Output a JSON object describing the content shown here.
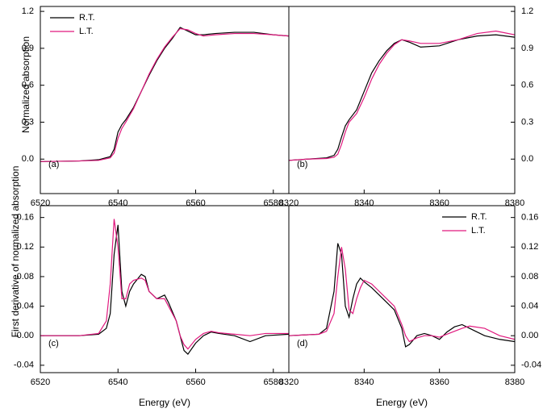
{
  "chart_data": [
    {
      "type": "line",
      "annotation": "(a)",
      "ylabel": "Normalized absorption",
      "y_axis_side": "left",
      "legend": "upper left",
      "xlim": [
        6520,
        6584
      ],
      "xticks": [
        6520,
        6540,
        6560,
        6580
      ],
      "ylim": [
        -0.28,
        1.24
      ],
      "yticks": [
        1.2,
        0.9,
        0.6,
        0.3,
        {
          "value": 0,
          "label": "0.0"
        }
      ],
      "x": [
        6520,
        6530,
        6535,
        6538,
        6539,
        6540,
        6541,
        6542,
        6544,
        6546,
        6548,
        6550,
        6552,
        6554,
        6556,
        6558,
        6560,
        6562,
        6565,
        6570,
        6575,
        6580,
        6584
      ],
      "series": [
        {
          "name": "R.T.",
          "color": "#000000",
          "values": [
            -0.02,
            -0.015,
            -0.005,
            0.02,
            0.08,
            0.22,
            0.28,
            0.32,
            0.42,
            0.55,
            0.68,
            0.8,
            0.9,
            0.98,
            1.07,
            1.04,
            1.01,
            1.01,
            1.02,
            1.03,
            1.03,
            1.01,
            1.0
          ]
        },
        {
          "name": "L.T.",
          "color": "#e0197e",
          "values": [
            -0.02,
            -0.015,
            -0.01,
            0.01,
            0.05,
            0.17,
            0.25,
            0.3,
            0.41,
            0.55,
            0.69,
            0.81,
            0.91,
            0.99,
            1.06,
            1.05,
            1.02,
            1.0,
            1.01,
            1.02,
            1.02,
            1.01,
            1.0
          ]
        }
      ]
    },
    {
      "type": "line",
      "annotation": "(b)",
      "y_axis_side": "right",
      "xlim": [
        8320,
        8380
      ],
      "xticks": [
        8320,
        8340,
        8360,
        8380
      ],
      "ylim": [
        -0.28,
        1.24
      ],
      "yticks": [
        1.2,
        0.9,
        0.6,
        0.3,
        {
          "value": 0,
          "label": "0.0"
        }
      ],
      "x": [
        8320,
        8325,
        8330,
        8332,
        8333,
        8334,
        8335,
        8336,
        8338,
        8340,
        8342,
        8344,
        8346,
        8348,
        8350,
        8352,
        8355,
        8360,
        8365,
        8370,
        8375,
        8380
      ],
      "series": [
        {
          "color": "#000000",
          "values": [
            -0.01,
            0,
            0.01,
            0.03,
            0.08,
            0.18,
            0.27,
            0.32,
            0.4,
            0.55,
            0.7,
            0.8,
            0.88,
            0.94,
            0.97,
            0.95,
            0.91,
            0.92,
            0.97,
            1.0,
            1.01,
            0.99
          ]
        },
        {
          "color": "#e0197e",
          "values": [
            -0.01,
            0,
            0.005,
            0.015,
            0.04,
            0.12,
            0.22,
            0.3,
            0.37,
            0.5,
            0.65,
            0.77,
            0.86,
            0.93,
            0.97,
            0.96,
            0.94,
            0.94,
            0.97,
            1.02,
            1.04,
            1.01
          ]
        }
      ]
    },
    {
      "type": "line",
      "annotation": "(c)",
      "ylabel": "First derivative of normalized absorption",
      "xlabel": "Energy (eV)",
      "y_axis_side": "left",
      "xlim": [
        6520,
        6584
      ],
      "xticks": [
        6520,
        6540,
        6560,
        6580
      ],
      "ylim": [
        -0.05,
        0.176
      ],
      "yticks": [
        0.16,
        0.12,
        0.08,
        0.04,
        {
          "value": 0,
          "label": "0.00"
        },
        -0.04
      ],
      "x": [
        6520,
        6530,
        6535,
        6537,
        6538,
        6539,
        6540,
        6541,
        6542,
        6543,
        6544,
        6546,
        6547,
        6548,
        6550,
        6552,
        6553,
        6555,
        6556,
        6557,
        6558,
        6560,
        6562,
        6564,
        6566,
        6570,
        6574,
        6578,
        6584
      ],
      "series": [
        {
          "color": "#000000",
          "values": [
            0,
            0,
            0.002,
            0.01,
            0.03,
            0.11,
            0.15,
            0.06,
            0.04,
            0.06,
            0.07,
            0.083,
            0.08,
            0.06,
            0.05,
            0.055,
            0.045,
            0.02,
            0,
            -0.02,
            -0.025,
            -0.01,
            0,
            0.005,
            0.003,
            0,
            -0.008,
            0,
            0.002
          ]
        },
        {
          "color": "#e0197e",
          "values": [
            0,
            0,
            0.003,
            0.02,
            0.07,
            0.158,
            0.12,
            0.05,
            0.05,
            0.07,
            0.075,
            0.078,
            0.075,
            0.06,
            0.05,
            0.05,
            0.04,
            0.02,
            0,
            -0.012,
            -0.018,
            -0.005,
            0.003,
            0.006,
            0.004,
            0.002,
            0,
            0.003,
            0.003
          ]
        }
      ]
    },
    {
      "type": "line",
      "annotation": "(d)",
      "xlabel": "Energy (eV)",
      "y_axis_side": "right",
      "legend": "upper right",
      "xlim": [
        8320,
        8380
      ],
      "xticks": [
        8320,
        8340,
        8360,
        8380
      ],
      "ylim": [
        -0.05,
        0.176
      ],
      "yticks": [
        0.16,
        0.12,
        0.08,
        0.04,
        {
          "value": 0,
          "label": "0.00"
        },
        -0.04
      ],
      "x": [
        8320,
        8328,
        8330,
        8332,
        8333,
        8334,
        8335,
        8336,
        8337,
        8338,
        8339,
        8340,
        8342,
        8344,
        8346,
        8348,
        8350,
        8351,
        8352,
        8354,
        8356,
        8358,
        8360,
        8362,
        8364,
        8366,
        8368,
        8372,
        8376,
        8380
      ],
      "series": [
        {
          "name": "R.T.",
          "color": "#000000",
          "values": [
            0,
            0.002,
            0.01,
            0.06,
            0.125,
            0.11,
            0.04,
            0.025,
            0.05,
            0.07,
            0.078,
            0.073,
            0.065,
            0.055,
            0.045,
            0.035,
            0.01,
            -0.015,
            -0.012,
            0,
            0.003,
            0,
            -0.005,
            0.005,
            0.012,
            0.015,
            0.01,
            0,
            -0.005,
            -0.008
          ]
        },
        {
          "name": "L.T.",
          "color": "#e0197e",
          "values": [
            0,
            0.002,
            0.006,
            0.03,
            0.08,
            0.12,
            0.09,
            0.035,
            0.03,
            0.05,
            0.065,
            0.075,
            0.07,
            0.06,
            0.05,
            0.04,
            0.015,
            0,
            -0.008,
            -0.003,
            0,
            0,
            -0.002,
            0.002,
            0.006,
            0.01,
            0.013,
            0.01,
            0,
            -0.005
          ]
        }
      ]
    }
  ]
}
